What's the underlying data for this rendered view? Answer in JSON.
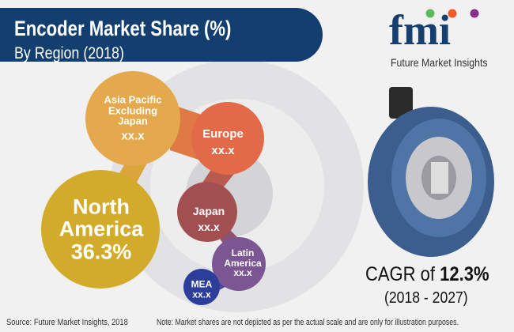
{
  "header": {
    "title": "Encoder Market Share (%)",
    "subtitle": "By Region (2018)"
  },
  "logo": {
    "text": "fmi",
    "tagline": "Future Market Insights",
    "dot_colors": [
      "#5cb85c",
      "#f05a28",
      "#8e2c8e"
    ]
  },
  "regions": [
    {
      "name": "Asia Pacific Excluding Japan",
      "line1": "Asia Pacific",
      "line2": "Excluding",
      "line3": "Japan",
      "value": "xx.x",
      "color": "#e4a84d"
    },
    {
      "name": "Europe",
      "value": "xx.x",
      "color": "#e26a48"
    },
    {
      "name": "North America",
      "line1": "North",
      "line2": "America",
      "value": "36.3%",
      "color": "#d3ab2b"
    },
    {
      "name": "Japan",
      "value": "xx.x",
      "color": "#a24f52"
    },
    {
      "name": "Latin America",
      "line1": "Latin",
      "line2": "America",
      "value": "xx.x",
      "color": "#7b5692"
    },
    {
      "name": "MEA",
      "value": "xx.x",
      "color": "#2c3e99"
    }
  ],
  "cagr": {
    "prefix": "CAGR of ",
    "value": "12.3%",
    "period": "(2018 - 2027)"
  },
  "footer": {
    "source": "Source: Future Market Insights, 2018",
    "note": "Note: Market shares are not depicted as per the actual scale and are only for illustration purposes."
  }
}
